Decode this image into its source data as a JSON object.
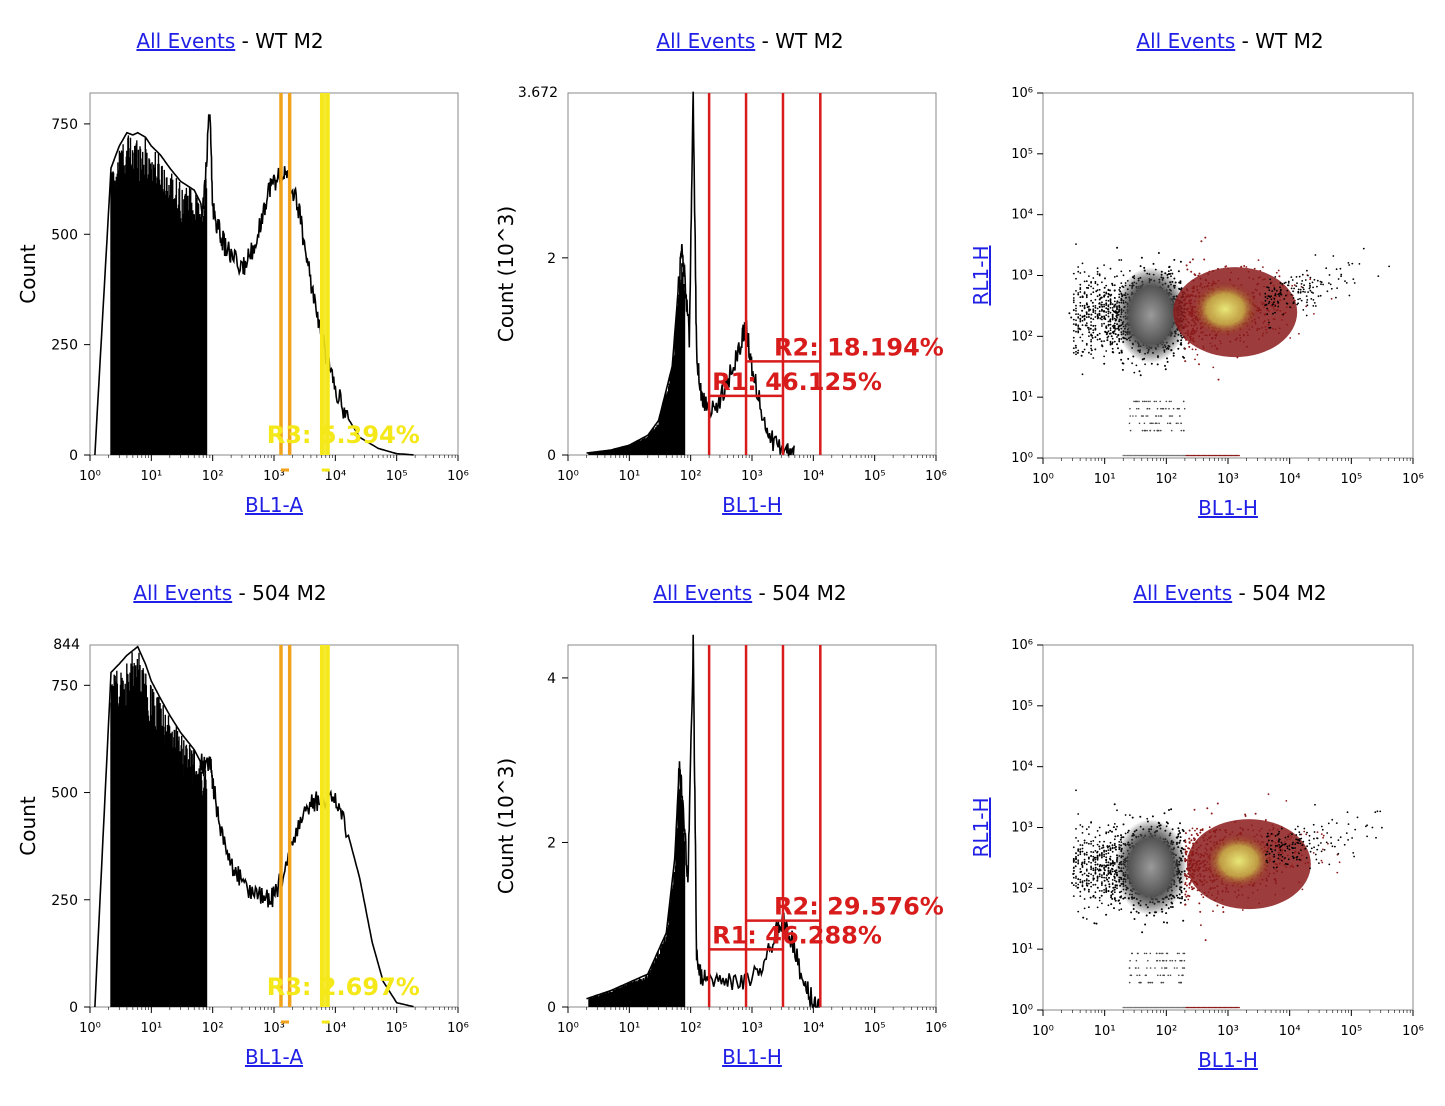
{
  "panels": [
    {
      "id": "wt-hist-a",
      "title_link": "All Events",
      "title_rest": "WT M2",
      "chart_data": {
        "type": "histogram",
        "xlabel": "BL1-A",
        "xlabel_is_link": true,
        "xscale": "log",
        "xlim": [
          1,
          1000000
        ],
        "xticks": [
          "10⁰",
          "10¹",
          "10²",
          "10³",
          "10⁴",
          "10⁵",
          "10⁶"
        ],
        "ylabel": "Count",
        "yticks": [
          0,
          250,
          500,
          750
        ],
        "ylim": [
          0,
          820
        ],
        "top_tick": "",
        "curve": [
          [
            1.2,
            0
          ],
          [
            2.2,
            650
          ],
          [
            3,
            700
          ],
          [
            4,
            730
          ],
          [
            5,
            725
          ],
          [
            6,
            730
          ],
          [
            8,
            720
          ],
          [
            10,
            700
          ],
          [
            14,
            680
          ],
          [
            20,
            650
          ],
          [
            30,
            620
          ],
          [
            50,
            600
          ],
          [
            70,
            560
          ],
          [
            90,
            780
          ],
          [
            100,
            560
          ],
          [
            120,
            520
          ],
          [
            150,
            480
          ],
          [
            200,
            450
          ],
          [
            300,
            420
          ],
          [
            400,
            450
          ],
          [
            600,
            520
          ],
          [
            800,
            600
          ],
          [
            1000,
            620
          ],
          [
            1400,
            640
          ],
          [
            1800,
            620
          ],
          [
            2500,
            560
          ],
          [
            3500,
            440
          ],
          [
            5000,
            320
          ],
          [
            7000,
            230
          ],
          [
            10000,
            150
          ],
          [
            15000,
            90
          ],
          [
            25000,
            40
          ],
          [
            50000,
            15
          ],
          [
            100000,
            3
          ],
          [
            200000,
            0
          ]
        ],
        "gates": [
          {
            "label": "",
            "color": "#f0a21a",
            "x": [
              1300,
              1800
            ]
          },
          {
            "label": "R3: 5.394%",
            "color": "#f4e818",
            "x": [
              6000,
              7600
            ]
          }
        ]
      }
    },
    {
      "id": "wt-hist-h",
      "title_link": "All Events",
      "title_rest": "WT M2",
      "chart_data": {
        "type": "histogram",
        "xlabel": "BL1-H",
        "xlabel_is_link": true,
        "xscale": "log",
        "xlim": [
          1,
          1000000
        ],
        "xticks": [
          "10⁰",
          "10¹",
          "10²",
          "10³",
          "10⁴",
          "10⁵",
          "10⁶"
        ],
        "ylabel": "Count (10^3)",
        "yticks": [
          0,
          2
        ],
        "ylim": [
          0,
          3.672
        ],
        "top_tick": "3.672",
        "curve": [
          [
            2,
            0.02
          ],
          [
            5,
            0.05
          ],
          [
            10,
            0.1
          ],
          [
            20,
            0.2
          ],
          [
            30,
            0.35
          ],
          [
            50,
            0.9
          ],
          [
            65,
            1.8
          ],
          [
            72,
            2.05
          ],
          [
            80,
            1.8
          ],
          [
            95,
            1.2
          ],
          [
            110,
            3.672
          ],
          [
            125,
            1.0
          ],
          [
            150,
            0.6
          ],
          [
            200,
            0.45
          ],
          [
            300,
            0.55
          ],
          [
            500,
            0.9
          ],
          [
            700,
            1.2
          ],
          [
            800,
            1.3
          ],
          [
            1000,
            0.9
          ],
          [
            1500,
            0.4
          ],
          [
            2200,
            0.12
          ],
          [
            3500,
            0.02
          ],
          [
            5000,
            0
          ]
        ],
        "gates": [
          {
            "label": "R1: 46.125%",
            "color": "#d81b1b",
            "x": [
              200,
              3200
            ],
            "bar_y": 0.6
          },
          {
            "label": "R2: 18.194%",
            "color": "#d81b1b",
            "x": [
              800,
              13000
            ],
            "bar_y": 0.95
          }
        ]
      }
    },
    {
      "id": "wt-scatter",
      "title_link": "All Events",
      "title_rest": "WT M2",
      "chart_data": {
        "type": "scatter",
        "xlabel": "BL1-H",
        "ylabel": "RL1-H",
        "xscale": "log",
        "yscale": "log",
        "xlim": [
          1,
          1000000
        ],
        "ylim": [
          1,
          1000000
        ],
        "xticks": [
          "10⁰",
          "10¹",
          "10²",
          "10³",
          "10⁴",
          "10⁵",
          "10⁶"
        ],
        "yticks": [
          "10⁰",
          "10¹",
          "10²",
          "10³",
          "10⁴",
          "10⁵",
          "10⁶"
        ],
        "gate_x": 200,
        "center_y": 250,
        "hot_x": 900,
        "colors": {
          "all": "#000000",
          "gated": "#8b1a1a",
          "dense": "#e8e878"
        }
      }
    },
    {
      "id": "504-hist-a",
      "title_link": "All Events",
      "title_rest": "504 M2",
      "chart_data": {
        "type": "histogram",
        "xlabel": "BL1-A",
        "xlabel_is_link": true,
        "xscale": "log",
        "xlim": [
          1,
          1000000
        ],
        "xticks": [
          "10⁰",
          "10¹",
          "10²",
          "10³",
          "10⁴",
          "10⁵",
          "10⁶"
        ],
        "ylabel": "Count",
        "yticks": [
          0,
          250,
          500,
          750
        ],
        "ylim": [
          0,
          844
        ],
        "top_tick": "844",
        "curve": [
          [
            1.2,
            0
          ],
          [
            2.2,
            780
          ],
          [
            3,
            800
          ],
          [
            4,
            820
          ],
          [
            6,
            840
          ],
          [
            8,
            800
          ],
          [
            10,
            760
          ],
          [
            14,
            720
          ],
          [
            20,
            680
          ],
          [
            30,
            640
          ],
          [
            50,
            600
          ],
          [
            70,
            560
          ],
          [
            90,
            580
          ],
          [
            100,
            520
          ],
          [
            130,
            430
          ],
          [
            200,
            330
          ],
          [
            300,
            290
          ],
          [
            500,
            260
          ],
          [
            800,
            250
          ],
          [
            1000,
            260
          ],
          [
            1500,
            320
          ],
          [
            2500,
            420
          ],
          [
            4000,
            470
          ],
          [
            6000,
            490
          ],
          [
            10000,
            480
          ],
          [
            15000,
            420
          ],
          [
            25000,
            300
          ],
          [
            40000,
            150
          ],
          [
            60000,
            60
          ],
          [
            100000,
            10
          ],
          [
            200000,
            0
          ]
        ],
        "gates": [
          {
            "label": "",
            "color": "#f0a21a",
            "x": [
              1300,
              1800
            ]
          },
          {
            "label": "R3: 2.697%",
            "color": "#f4e818",
            "x": [
              6000,
              7600
            ]
          }
        ]
      }
    },
    {
      "id": "504-hist-h",
      "title_link": "All Events",
      "title_rest": "504 M2",
      "chart_data": {
        "type": "histogram",
        "xlabel": "BL1-H",
        "xlabel_is_link": true,
        "xscale": "log",
        "xlim": [
          1,
          1000000
        ],
        "xticks": [
          "10⁰",
          "10¹",
          "10²",
          "10³",
          "10⁴",
          "10⁵",
          "10⁶"
        ],
        "ylabel": "Count (10^3)",
        "yticks": [
          0,
          2,
          4
        ],
        "ylim": [
          0,
          4.4
        ],
        "top_tick": "",
        "curve": [
          [
            2,
            0.1
          ],
          [
            5,
            0.2
          ],
          [
            10,
            0.3
          ],
          [
            20,
            0.4
          ],
          [
            40,
            0.9
          ],
          [
            55,
            1.8
          ],
          [
            65,
            2.9
          ],
          [
            75,
            2.5
          ],
          [
            90,
            1.5
          ],
          [
            110,
            4.4
          ],
          [
            125,
            0.6
          ],
          [
            150,
            0.35
          ],
          [
            200,
            0.32
          ],
          [
            400,
            0.28
          ],
          [
            800,
            0.3
          ],
          [
            1500,
            0.5
          ],
          [
            2500,
            0.9
          ],
          [
            3300,
            1.05
          ],
          [
            4500,
            0.8
          ],
          [
            7000,
            0.3
          ],
          [
            10000,
            0.05
          ],
          [
            13000,
            0
          ]
        ],
        "gates": [
          {
            "label": "R1: 46.288%",
            "color": "#d81b1b",
            "x": [
              200,
              3200
            ],
            "bar_y": 0.7
          },
          {
            "label": "R2: 29.576%",
            "color": "#d81b1b",
            "x": [
              800,
              13000
            ],
            "bar_y": 1.05
          }
        ]
      }
    },
    {
      "id": "504-scatter",
      "title_link": "All Events",
      "title_rest": "504 M2",
      "chart_data": {
        "type": "scatter",
        "xlabel": "BL1-H",
        "ylabel": "RL1-H",
        "xscale": "log",
        "yscale": "log",
        "xlim": [
          1,
          1000000
        ],
        "ylim": [
          1,
          1000000
        ],
        "xticks": [
          "10⁰",
          "10¹",
          "10²",
          "10³",
          "10⁴",
          "10⁵",
          "10⁶"
        ],
        "yticks": [
          "10⁰",
          "10¹",
          "10²",
          "10³",
          "10⁴",
          "10⁵",
          "10⁶"
        ],
        "gate_x": 200,
        "center_y": 250,
        "hot_x": 1500,
        "colors": {
          "all": "#000000",
          "gated": "#8b1a1a",
          "dense": "#e8e878"
        }
      }
    }
  ]
}
